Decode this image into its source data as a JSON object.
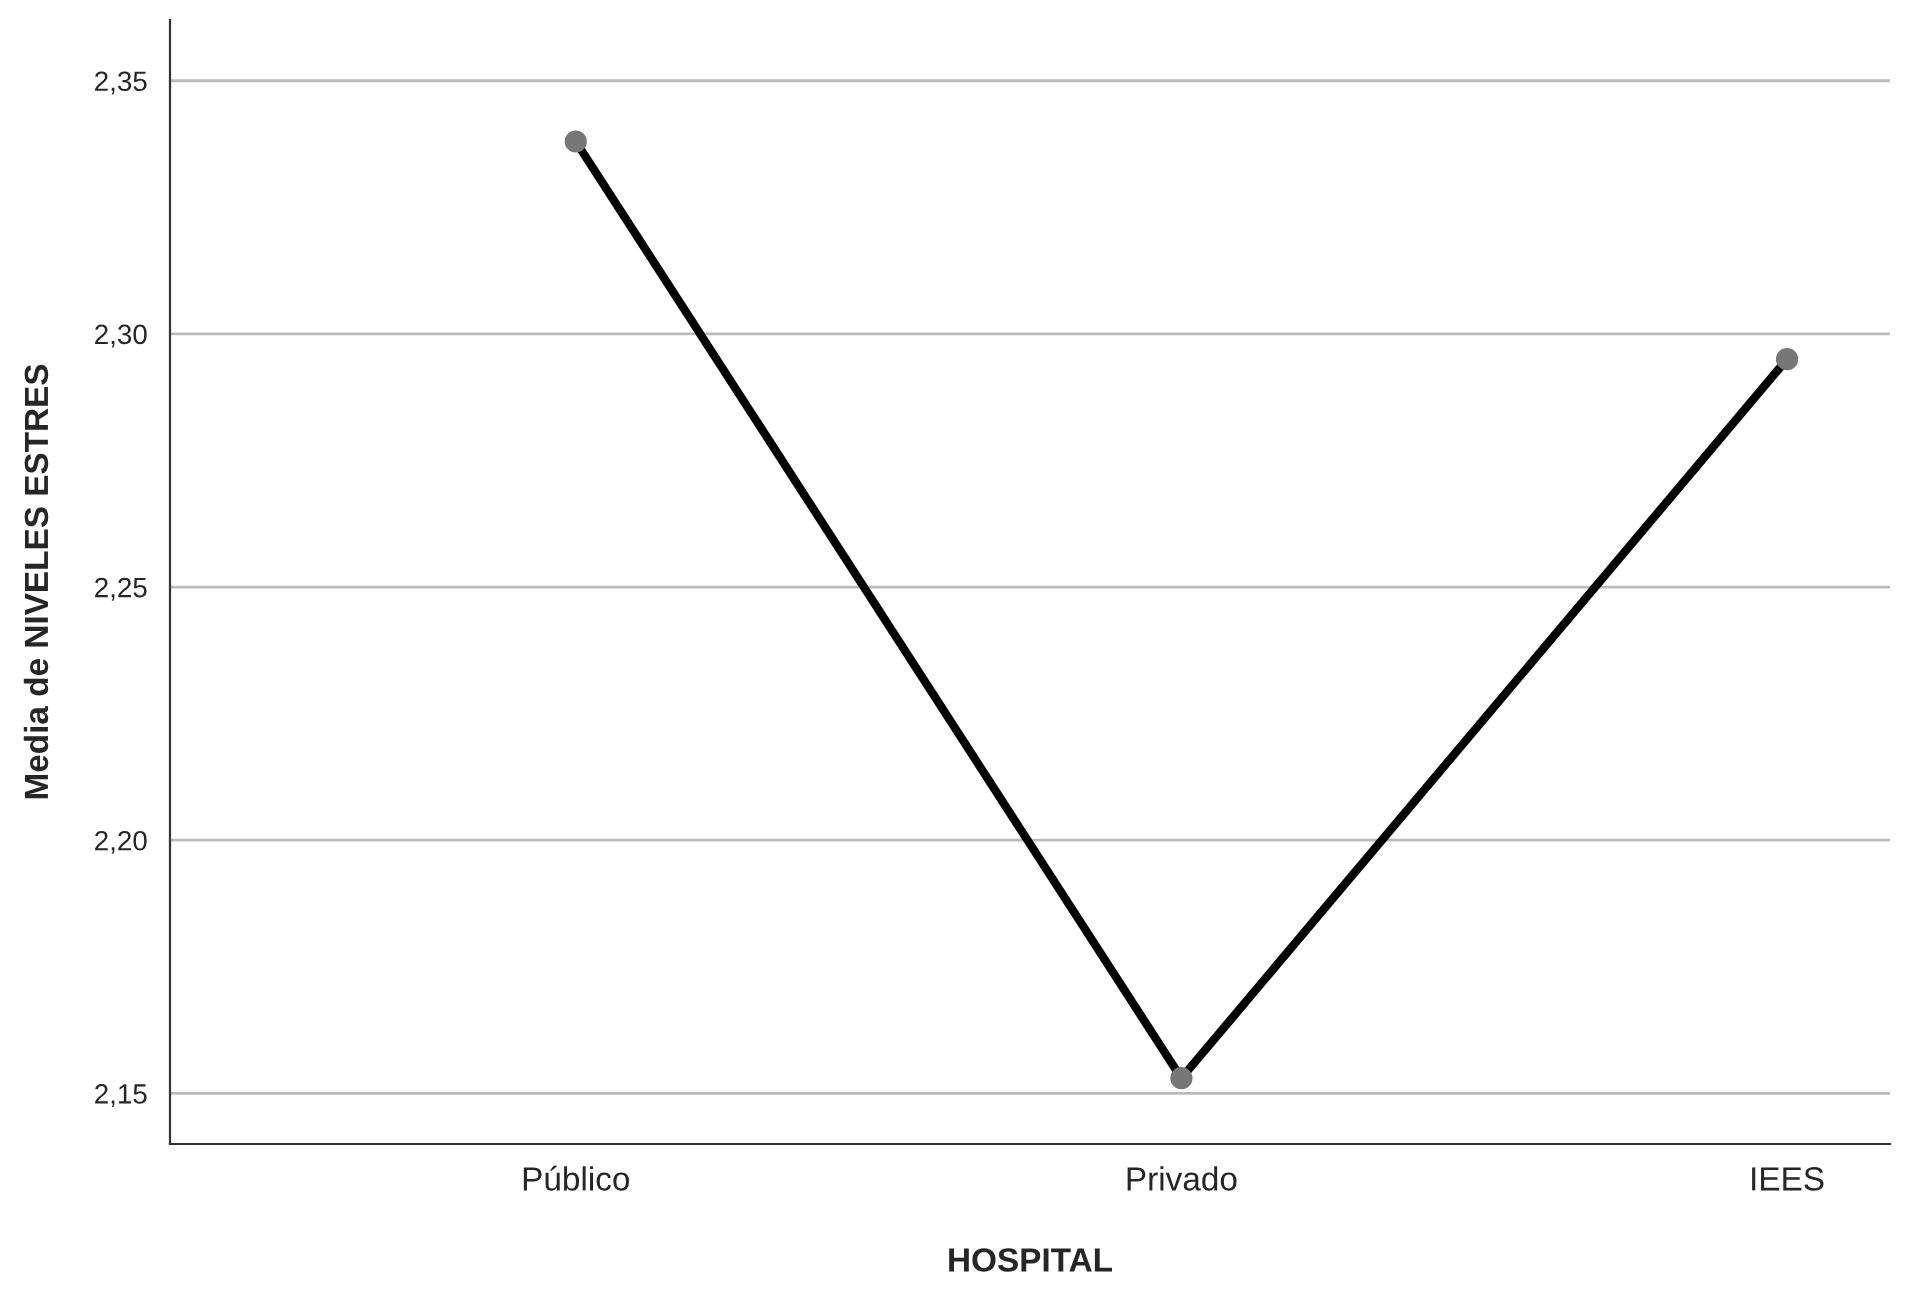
{
  "chart_data": {
    "type": "line",
    "xlabel": "HOSPITAL",
    "ylabel": "Media de NIVELES ESTRES",
    "categories": [
      "Público",
      "Privado",
      "IEES"
    ],
    "series": [
      {
        "color": "#000000",
        "values": [
          2.338,
          2.153,
          2.295
        ]
      }
    ],
    "ylim": [
      2.14,
      2.362
    ],
    "yticks": [
      {
        "value": 2.15,
        "label": "2,15"
      },
      {
        "value": 2.2,
        "label": "2,20"
      },
      {
        "value": 2.25,
        "label": "2,25"
      },
      {
        "value": 2.3,
        "label": "2,30"
      },
      {
        "value": 2.35,
        "label": "2,35"
      }
    ],
    "grid": "y",
    "marker": "circle",
    "line_style": "solid"
  }
}
